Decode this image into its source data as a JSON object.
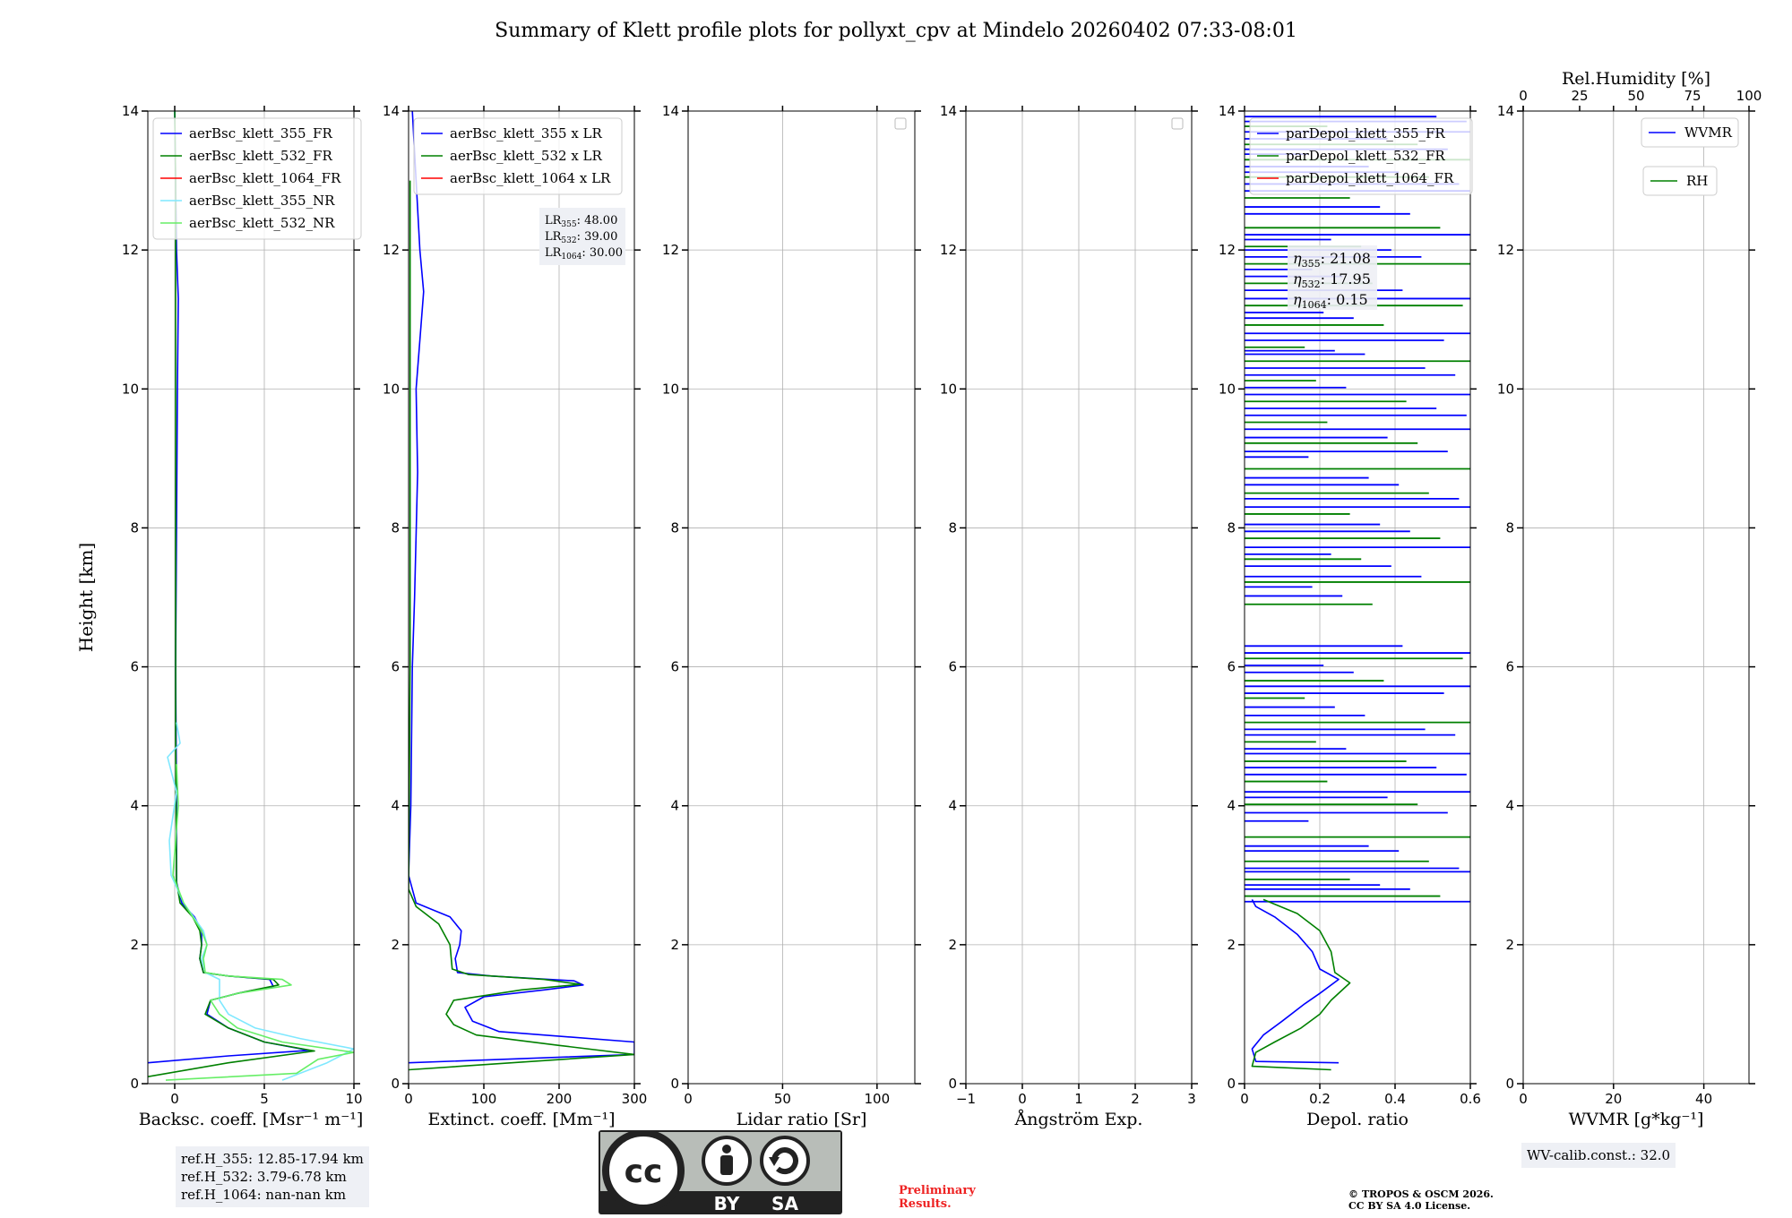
{
  "figure": {
    "title": "Summary of Klett profile plots for pollyxt_cpv at Mindelo 20260402 07:33-08:01",
    "ylabel": "Height [km]",
    "refH": [
      "ref.H_355: 12.85-17.94 km",
      "ref.H_532: 3.79-6.78 km",
      "ref.H_1064: nan-nan km"
    ],
    "wv_calib": "WV-calib.const.: 32.0",
    "cc_license": {
      "by": "BY",
      "sa": "SA",
      "cc": "cc"
    },
    "preliminary": [
      "Preliminary",
      "Results."
    ],
    "copyright": [
      "© TROPOS & OSCM 2026.",
      "CC BY SA 4.0 License."
    ]
  },
  "chart_data": [
    {
      "type": "line",
      "id": "bsc",
      "xlabel": "Backsc. coeff. [Msr⁻¹ m⁻¹]",
      "xlim": [
        -1.5,
        10
      ],
      "xticks": [
        0,
        5,
        10
      ],
      "ylim": [
        0,
        14
      ],
      "yticks": [
        0,
        2,
        4,
        6,
        8,
        10,
        12,
        14
      ],
      "legend": [
        "aerBsc_klett_355_FR",
        "aerBsc_klett_532_FR",
        "aerBsc_klett_1064_FR",
        "aerBsc_klett_355_NR",
        "aerBsc_klett_532_NR"
      ],
      "series": [
        {
          "name": "aerBsc_klett_355_FR",
          "color": "#0000ff",
          "points": [
            [
              -1.5,
              0.3
            ],
            [
              3,
              0.4
            ],
            [
              7.5,
              0.48
            ],
            [
              5,
              0.6
            ],
            [
              3,
              0.8
            ],
            [
              1.8,
              1.0
            ],
            [
              2,
              1.2
            ],
            [
              3.5,
              1.3
            ],
            [
              5.5,
              1.4
            ],
            [
              5.3,
              1.5
            ],
            [
              3,
              1.55
            ],
            [
              1.6,
              1.6
            ],
            [
              1.4,
              1.8
            ],
            [
              1.5,
              2.0
            ],
            [
              1.5,
              2.2
            ],
            [
              1.1,
              2.4
            ],
            [
              0.4,
              2.6
            ],
            [
              0.1,
              2.9
            ],
            [
              0.1,
              4
            ],
            [
              0.05,
              6
            ],
            [
              0.1,
              8
            ],
            [
              0.15,
              10
            ],
            [
              0.2,
              11.3
            ],
            [
              0.1,
              12
            ],
            [
              0.05,
              13
            ],
            [
              0,
              14
            ]
          ]
        },
        {
          "name": "aerBsc_klett_532_FR",
          "color": "#008000",
          "points": [
            [
              -1.5,
              0.1
            ],
            [
              3,
              0.3
            ],
            [
              7.8,
              0.47
            ],
            [
              5,
              0.6
            ],
            [
              3,
              0.8
            ],
            [
              1.7,
              1.0
            ],
            [
              2,
              1.2
            ],
            [
              3.5,
              1.3
            ],
            [
              5.8,
              1.42
            ],
            [
              5.5,
              1.5
            ],
            [
              3,
              1.55
            ],
            [
              1.6,
              1.6
            ],
            [
              1.4,
              1.8
            ],
            [
              1.5,
              2.0
            ],
            [
              1.4,
              2.2
            ],
            [
              1,
              2.4
            ],
            [
              0.3,
              2.6
            ],
            [
              0.1,
              2.9
            ],
            [
              0.05,
              5
            ],
            [
              0.05,
              8
            ],
            [
              0.05,
              10
            ],
            [
              0.05,
              13
            ],
            [
              0,
              14
            ]
          ]
        },
        {
          "name": "aerBsc_klett_1064_FR",
          "color": "#ff0000",
          "points": []
        },
        {
          "name": "aerBsc_klett_355_NR",
          "color": "#7fe8ff",
          "points": [
            [
              6,
              0.05
            ],
            [
              8.5,
              0.3
            ],
            [
              10,
              0.5
            ],
            [
              7,
              0.65
            ],
            [
              4.5,
              0.8
            ],
            [
              3,
              1.0
            ],
            [
              2.5,
              1.2
            ],
            [
              2.5,
              1.5
            ],
            [
              1.7,
              1.6
            ],
            [
              1.5,
              1.8
            ],
            [
              1.8,
              2.0
            ],
            [
              1.6,
              2.2
            ],
            [
              0.5,
              2.6
            ],
            [
              -0.2,
              3.0
            ],
            [
              -0.3,
              3.5
            ],
            [
              0.1,
              4.2
            ],
            [
              -0.4,
              4.7
            ],
            [
              0.3,
              4.9
            ],
            [
              0.1,
              5.2
            ]
          ]
        },
        {
          "name": "aerBsc_klett_532_NR",
          "color": "#66ee66",
          "points": [
            [
              -0.5,
              0.05
            ],
            [
              6.8,
              0.15
            ],
            [
              8,
              0.35
            ],
            [
              10,
              0.45
            ],
            [
              6,
              0.6
            ],
            [
              3.5,
              0.8
            ],
            [
              2.5,
              1.0
            ],
            [
              2,
              1.2
            ],
            [
              3.5,
              1.3
            ],
            [
              6.5,
              1.42
            ],
            [
              6,
              1.5
            ],
            [
              3,
              1.55
            ],
            [
              1.7,
              1.6
            ],
            [
              1.6,
              1.8
            ],
            [
              1.8,
              2.0
            ],
            [
              1.5,
              2.2
            ],
            [
              0.5,
              2.6
            ],
            [
              -0.1,
              3.0
            ],
            [
              0.2,
              4.0
            ],
            [
              0.1,
              4.6
            ]
          ]
        }
      ]
    },
    {
      "type": "line",
      "id": "ext",
      "xlabel": "Extinct. coeff. [Mm⁻¹]",
      "xlim": [
        0,
        300
      ],
      "xticks": [
        0,
        100,
        200,
        300
      ],
      "ylim": [
        0,
        14
      ],
      "legend": [
        "aerBsc_klett_355 x LR",
        "aerBsc_klett_532 x LR",
        "aerBsc_klett_1064 x LR"
      ],
      "lr_box": [
        "48.00",
        "39.00",
        "30.00"
      ],
      "series": [
        {
          "name": "aerBsc_klett_355 x LR",
          "color": "#0000ff",
          "points": [
            [
              0,
              0.3
            ],
            [
              300,
              0.42
            ],
            [
              300,
              0.6
            ],
            [
              120,
              0.75
            ],
            [
              85,
              0.9
            ],
            [
              75,
              1.1
            ],
            [
              100,
              1.25
            ],
            [
              180,
              1.35
            ],
            [
              232,
              1.42
            ],
            [
              220,
              1.48
            ],
            [
              110,
              1.55
            ],
            [
              65,
              1.6
            ],
            [
              62,
              1.8
            ],
            [
              68,
              2.0
            ],
            [
              70,
              2.2
            ],
            [
              55,
              2.4
            ],
            [
              10,
              2.6
            ],
            [
              0,
              3
            ],
            [
              3,
              4
            ],
            [
              5,
              6
            ],
            [
              8,
              7
            ],
            [
              12,
              8.8
            ],
            [
              10,
              10
            ],
            [
              20,
              11.4
            ],
            [
              15,
              12
            ],
            [
              10,
              13
            ],
            [
              5,
              14
            ]
          ]
        },
        {
          "name": "aerBsc_klett_532 x LR",
          "color": "#008000",
          "points": [
            [
              0,
              0.2
            ],
            [
              300,
              0.42
            ],
            [
              200,
              0.55
            ],
            [
              90,
              0.7
            ],
            [
              60,
              0.85
            ],
            [
              50,
              1.0
            ],
            [
              60,
              1.2
            ],
            [
              150,
              1.35
            ],
            [
              228,
              1.43
            ],
            [
              180,
              1.5
            ],
            [
              80,
              1.57
            ],
            [
              58,
              1.65
            ],
            [
              55,
              2.0
            ],
            [
              40,
              2.3
            ],
            [
              10,
              2.55
            ],
            [
              0,
              2.8
            ],
            [
              2,
              6
            ],
            [
              2,
              10
            ],
            [
              2,
              13
            ]
          ]
        },
        {
          "name": "aerBsc_klett_1064 x LR",
          "color": "#ff0000",
          "points": []
        }
      ]
    },
    {
      "type": "line",
      "id": "lr",
      "xlabel": "Lidar ratio [Sr]",
      "xlim": [
        0,
        120
      ],
      "xticks": [
        0,
        50,
        100
      ],
      "ylim": [
        0,
        14
      ],
      "series": []
    },
    {
      "type": "line",
      "id": "ang",
      "xlabel": "Ångström Exp.",
      "xlim": [
        -1,
        3
      ],
      "xticks": [
        -1,
        0,
        1,
        2,
        3
      ],
      "ylim": [
        0,
        14
      ],
      "series": []
    },
    {
      "type": "line",
      "id": "depol",
      "xlabel": "Depol. ratio",
      "xlim": [
        0,
        0.6
      ],
      "xticks": [
        0,
        0.2,
        0.4,
        0.6
      ],
      "ylim": [
        0,
        14
      ],
      "legend": [
        "parDepol_klett_355_FR",
        "parDepol_klett_532_FR",
        "parDepol_klett_1064_FR"
      ],
      "eta_box": [
        "21.08",
        "17.95",
        "0.15"
      ],
      "series": [
        {
          "name": "parDepol_klett_355_FR",
          "color": "#0000ff",
          "points": [
            [
              0.25,
              0.3
            ],
            [
              0.03,
              0.32
            ],
            [
              0.02,
              0.5
            ],
            [
              0.05,
              0.7
            ],
            [
              0.1,
              0.9
            ],
            [
              0.16,
              1.15
            ],
            [
              0.2,
              1.3
            ],
            [
              0.25,
              1.5
            ],
            [
              0.2,
              1.65
            ],
            [
              0.18,
              1.9
            ],
            [
              0.14,
              2.15
            ],
            [
              0.08,
              2.4
            ],
            [
              0.03,
              2.55
            ],
            [
              0.02,
              2.65
            ]
          ]
        },
        {
          "name": "parDepol_klett_532_FR",
          "color": "#008000",
          "points": [
            [
              0.23,
              0.2
            ],
            [
              0.02,
              0.25
            ],
            [
              0.03,
              0.45
            ],
            [
              0.08,
              0.6
            ],
            [
              0.15,
              0.8
            ],
            [
              0.2,
              1.0
            ],
            [
              0.23,
              1.2
            ],
            [
              0.28,
              1.45
            ],
            [
              0.24,
              1.6
            ],
            [
              0.23,
              1.9
            ],
            [
              0.2,
              2.2
            ],
            [
              0.14,
              2.45
            ],
            [
              0.05,
              2.65
            ]
          ]
        },
        {
          "name": "parDepol_klett_1064_FR",
          "color": "#ff0000",
          "points": []
        }
      ],
      "noise_heights": [
        2.62,
        2.7,
        2.8,
        2.86,
        2.94,
        3.05,
        3.1,
        3.2,
        3.35,
        3.42,
        3.55,
        3.78,
        3.9,
        4.02,
        4.12,
        4.2,
        4.35,
        4.45,
        4.55,
        4.64,
        4.75,
        4.82,
        4.92,
        5.02,
        5.1,
        5.2,
        5.3,
        5.42,
        5.55,
        5.62,
        5.72,
        5.8,
        5.92,
        6.02,
        6.12,
        6.2,
        6.3,
        6.9,
        7.02,
        7.15,
        7.22,
        7.3,
        7.45,
        7.55,
        7.62,
        7.72,
        7.85,
        7.95,
        8.05,
        8.2,
        8.3,
        8.42,
        8.5,
        8.62,
        8.72,
        8.85,
        9.02,
        9.1,
        9.22,
        9.3,
        9.42,
        9.52,
        9.62,
        9.72,
        9.82,
        9.92,
        10.02,
        10.12,
        10.2,
        10.3,
        10.4,
        10.5,
        10.55,
        10.6,
        10.7,
        10.8,
        10.92,
        11.02,
        11.1,
        11.2,
        11.3,
        11.42,
        11.52,
        11.62,
        11.72,
        11.8,
        11.9,
        12.0,
        12.05,
        12.15,
        12.22,
        12.32,
        12.52,
        12.62,
        12.75,
        12.85,
        12.95,
        13.05,
        13.12,
        13.2,
        13.3,
        13.38,
        13.45,
        13.52,
        13.6,
        13.7,
        13.78,
        13.85,
        13.92
      ]
    },
    {
      "type": "line",
      "id": "wv",
      "xlabel": "WVMR [g*kg⁻¹]",
      "xlim": [
        0,
        50
      ],
      "xticks": [
        0,
        20,
        40
      ],
      "ylim": [
        0,
        14
      ],
      "top_label": "Rel.Humidity [%]",
      "top_xlim": [
        0,
        100
      ],
      "top_xticks": [
        0,
        25,
        50,
        75,
        100
      ],
      "legend": [
        "WVMR",
        "RH"
      ],
      "series": [
        {
          "name": "WVMR",
          "color": "#0000ff",
          "points": []
        },
        {
          "name": "RH",
          "color": "#008000",
          "points": []
        }
      ]
    }
  ]
}
